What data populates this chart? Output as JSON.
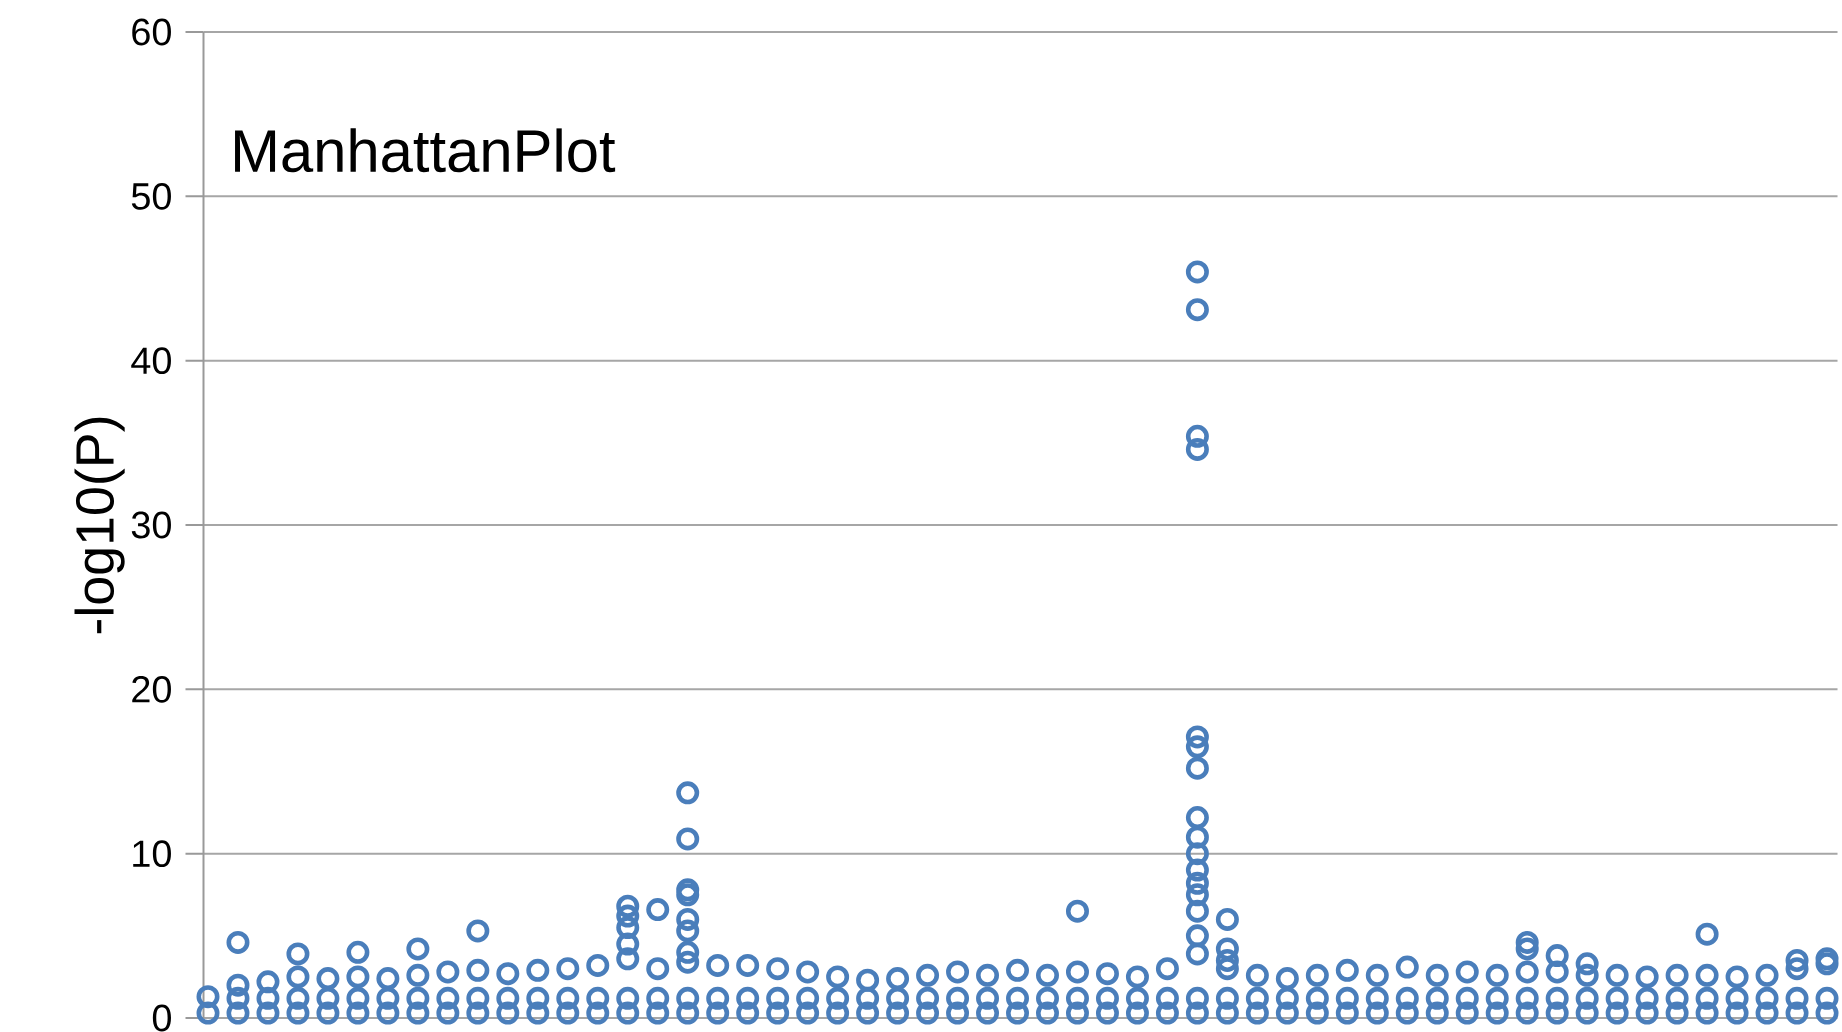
{
  "chart_data": {
    "type": "scatter",
    "title": "ManhattanPlot",
    "ylabel": "-log10(P)",
    "color": "#4a7ebb",
    "marker": "circle",
    "grid": "y",
    "tick_labels": "y",
    "ylim": [
      0,
      60
    ],
    "yticks": [
      0,
      10,
      20,
      30,
      40,
      50,
      60
    ],
    "categories": [
      null,
      null,
      null,
      null,
      null,
      null,
      null,
      null,
      null,
      null,
      null,
      null,
      null,
      null,
      null,
      null,
      null,
      null,
      null,
      null,
      null,
      null,
      null,
      null,
      null,
      null,
      null,
      null,
      null,
      null,
      null,
      null,
      null,
      null,
      null,
      null,
      null,
      null,
      null,
      null,
      null,
      null,
      null,
      null,
      null,
      null,
      null,
      null,
      null,
      null,
      null,
      null,
      null,
      null,
      null
    ],
    "series": [
      {
        "values": [
          1.3,
          2.0,
          2.2,
          2.5,
          2.4,
          2.5,
          2.4,
          2.6,
          2.8,
          2.9,
          2.7,
          2.9,
          3.0,
          3.2,
          3.6,
          3.0,
          3.4,
          3.2,
          3.2,
          3.0,
          2.8,
          2.5,
          2.3,
          2.4,
          2.6,
          2.8,
          2.6,
          2.9,
          2.6,
          2.8,
          2.7,
          2.5,
          3.0,
          3.9,
          3.0,
          2.6,
          2.4,
          2.6,
          2.9,
          2.6,
          3.1,
          2.6,
          2.8,
          2.6,
          2.8,
          2.8,
          2.6,
          2.6,
          2.5,
          2.6,
          2.6,
          2.5,
          2.6,
          3.0,
          3.3
        ]
      },
      {
        "values": [
          null,
          1.2,
          1.2,
          1.2,
          1.2,
          1.2,
          1.2,
          1.2,
          1.2,
          1.2,
          1.2,
          1.2,
          1.2,
          1.2,
          1.2,
          1.2,
          1.2,
          1.2,
          1.2,
          1.2,
          1.2,
          1.2,
          1.2,
          1.2,
          1.2,
          1.2,
          1.2,
          1.2,
          1.2,
          1.2,
          1.2,
          1.2,
          1.2,
          1.2,
          1.2,
          1.2,
          1.2,
          1.2,
          1.2,
          1.2,
          1.2,
          1.2,
          1.2,
          1.2,
          1.2,
          1.2,
          1.2,
          1.2,
          1.2,
          1.2,
          1.2,
          1.2,
          1.2,
          1.2,
          1.2
        ]
      },
      {
        "values": [
          0.3,
          0.3,
          0.3,
          0.3,
          0.3,
          0.3,
          0.3,
          0.3,
          0.3,
          0.3,
          0.3,
          0.3,
          0.3,
          0.3,
          0.3,
          0.3,
          0.3,
          0.3,
          0.3,
          0.3,
          0.3,
          0.3,
          0.3,
          0.3,
          0.3,
          0.3,
          0.3,
          0.3,
          0.3,
          0.3,
          0.3,
          0.3,
          0.3,
          0.3,
          0.3,
          0.3,
          0.3,
          0.3,
          0.3,
          0.3,
          0.3,
          0.3,
          0.3,
          0.3,
          0.3,
          0.3,
          0.3,
          0.3,
          0.3,
          0.3,
          0.3,
          0.3,
          0.3,
          0.3,
          0.3
        ]
      },
      {
        "values": [
          null,
          4.6,
          null,
          3.9,
          null,
          4.0,
          null,
          4.2,
          null,
          5.3,
          null,
          null,
          null,
          null,
          6.8,
          6.6,
          13.7,
          null,
          null,
          null,
          null,
          null,
          null,
          null,
          null,
          null,
          null,
          null,
          null,
          6.5,
          null,
          null,
          null,
          45.4,
          6.0,
          null,
          null,
          null,
          null,
          null,
          null,
          null,
          null,
          null,
          4.6,
          3.8,
          3.3,
          null,
          null,
          null,
          5.1,
          null,
          null,
          3.5,
          3.6
        ]
      },
      {
        "values": [
          null,
          null,
          null,
          null,
          null,
          null,
          null,
          null,
          null,
          null,
          null,
          null,
          null,
          null,
          6.2,
          null,
          10.9,
          null,
          null,
          null,
          null,
          null,
          null,
          null,
          null,
          null,
          null,
          null,
          null,
          null,
          null,
          null,
          null,
          43.1,
          4.2,
          null,
          null,
          null,
          null,
          null,
          null,
          null,
          null,
          null,
          4.2,
          null,
          null,
          null,
          null,
          null,
          null,
          null,
          null,
          null,
          null
        ]
      },
      {
        "values": [
          null,
          null,
          null,
          null,
          null,
          null,
          null,
          null,
          null,
          null,
          null,
          null,
          null,
          null,
          5.5,
          null,
          7.8,
          null,
          null,
          null,
          null,
          null,
          null,
          null,
          null,
          null,
          null,
          null,
          null,
          null,
          null,
          null,
          null,
          35.4,
          3.5,
          null,
          null,
          null,
          null,
          null,
          null,
          null,
          null,
          null,
          null,
          null,
          null,
          null,
          null,
          null,
          null,
          null,
          null,
          null,
          null
        ]
      },
      {
        "values": [
          null,
          null,
          null,
          null,
          null,
          null,
          null,
          null,
          null,
          null,
          null,
          null,
          null,
          null,
          4.5,
          null,
          7.5,
          null,
          null,
          null,
          null,
          null,
          null,
          null,
          null,
          null,
          null,
          null,
          null,
          null,
          null,
          null,
          null,
          34.6,
          null,
          null,
          null,
          null,
          null,
          null,
          null,
          null,
          null,
          null,
          null,
          null,
          null,
          null,
          null,
          null,
          null,
          null,
          null,
          null,
          null
        ]
      },
      {
        "values": [
          null,
          null,
          null,
          null,
          null,
          null,
          null,
          null,
          null,
          null,
          null,
          null,
          null,
          null,
          null,
          null,
          6.0,
          null,
          null,
          null,
          null,
          null,
          null,
          null,
          null,
          null,
          null,
          null,
          null,
          null,
          null,
          null,
          null,
          17.1,
          null,
          null,
          null,
          null,
          null,
          null,
          null,
          null,
          null,
          null,
          null,
          null,
          null,
          null,
          null,
          null,
          null,
          null,
          null,
          null,
          null
        ]
      },
      {
        "values": [
          null,
          null,
          null,
          null,
          null,
          null,
          null,
          null,
          null,
          null,
          null,
          null,
          null,
          null,
          null,
          null,
          5.3,
          null,
          null,
          null,
          null,
          null,
          null,
          null,
          null,
          null,
          null,
          null,
          null,
          null,
          null,
          null,
          null,
          16.5,
          null,
          null,
          null,
          null,
          null,
          null,
          null,
          null,
          null,
          null,
          null,
          null,
          null,
          null,
          null,
          null,
          null,
          null,
          null,
          null,
          null
        ]
      },
      {
        "values": [
          null,
          null,
          null,
          null,
          null,
          null,
          null,
          null,
          null,
          null,
          null,
          null,
          null,
          null,
          null,
          null,
          null,
          null,
          null,
          null,
          null,
          null,
          null,
          null,
          null,
          null,
          null,
          null,
          null,
          null,
          null,
          null,
          null,
          15.2,
          null,
          null,
          null,
          null,
          null,
          null,
          null,
          null,
          null,
          null,
          null,
          null,
          null,
          null,
          null,
          null,
          null,
          null,
          null,
          null,
          null
        ]
      },
      {
        "values": [
          null,
          null,
          null,
          null,
          null,
          null,
          null,
          null,
          null,
          null,
          null,
          null,
          null,
          null,
          null,
          null,
          4.0,
          null,
          null,
          null,
          null,
          null,
          null,
          null,
          null,
          null,
          null,
          null,
          null,
          null,
          null,
          null,
          null,
          12.2,
          null,
          null,
          null,
          null,
          null,
          null,
          null,
          null,
          null,
          null,
          null,
          null,
          null,
          null,
          null,
          null,
          null,
          null,
          null,
          null,
          null
        ]
      },
      {
        "values": [
          null,
          null,
          null,
          null,
          null,
          null,
          null,
          null,
          null,
          null,
          null,
          null,
          null,
          null,
          null,
          null,
          null,
          null,
          null,
          null,
          null,
          null,
          null,
          null,
          null,
          null,
          null,
          null,
          null,
          null,
          null,
          null,
          null,
          11.0,
          null,
          null,
          null,
          null,
          null,
          null,
          null,
          null,
          null,
          null,
          null,
          null,
          null,
          null,
          null,
          null,
          null,
          null,
          null,
          null,
          null
        ]
      },
      {
        "values": [
          null,
          null,
          null,
          null,
          null,
          null,
          null,
          null,
          null,
          null,
          null,
          null,
          null,
          null,
          null,
          null,
          null,
          null,
          null,
          null,
          null,
          null,
          null,
          null,
          null,
          null,
          null,
          null,
          null,
          null,
          null,
          null,
          null,
          10.0,
          null,
          null,
          null,
          null,
          null,
          null,
          null,
          null,
          null,
          null,
          null,
          null,
          null,
          null,
          null,
          null,
          null,
          null,
          null,
          null,
          null
        ]
      },
      {
        "values": [
          null,
          null,
          null,
          null,
          null,
          null,
          null,
          null,
          null,
          null,
          null,
          null,
          null,
          null,
          null,
          null,
          null,
          null,
          null,
          null,
          null,
          null,
          null,
          null,
          null,
          null,
          null,
          null,
          null,
          null,
          null,
          null,
          null,
          9.0,
          null,
          null,
          null,
          null,
          null,
          null,
          null,
          null,
          null,
          null,
          null,
          null,
          null,
          null,
          null,
          null,
          null,
          null,
          null,
          null,
          null
        ]
      },
      {
        "values": [
          null,
          null,
          null,
          null,
          null,
          null,
          null,
          null,
          null,
          null,
          null,
          null,
          null,
          null,
          null,
          null,
          null,
          null,
          null,
          null,
          null,
          null,
          null,
          null,
          null,
          null,
          null,
          null,
          null,
          null,
          null,
          null,
          null,
          8.2,
          null,
          null,
          null,
          null,
          null,
          null,
          null,
          null,
          null,
          null,
          null,
          null,
          null,
          null,
          null,
          null,
          null,
          null,
          null,
          null,
          null
        ]
      },
      {
        "values": [
          null,
          null,
          null,
          null,
          null,
          null,
          null,
          null,
          null,
          null,
          null,
          null,
          null,
          null,
          null,
          null,
          null,
          null,
          null,
          null,
          null,
          null,
          null,
          null,
          null,
          null,
          null,
          null,
          null,
          null,
          null,
          null,
          null,
          7.5,
          null,
          null,
          null,
          null,
          null,
          null,
          null,
          null,
          null,
          null,
          null,
          null,
          null,
          null,
          null,
          null,
          null,
          null,
          null,
          null,
          null
        ]
      },
      {
        "values": [
          null,
          null,
          null,
          null,
          null,
          null,
          null,
          null,
          null,
          null,
          null,
          null,
          null,
          null,
          null,
          null,
          null,
          null,
          null,
          null,
          null,
          null,
          null,
          null,
          null,
          null,
          null,
          null,
          null,
          null,
          null,
          null,
          null,
          6.5,
          null,
          null,
          null,
          null,
          null,
          null,
          null,
          null,
          null,
          null,
          null,
          null,
          null,
          null,
          null,
          null,
          null,
          null,
          null,
          null,
          null
        ]
      },
      {
        "values": [
          null,
          null,
          null,
          null,
          null,
          null,
          null,
          null,
          null,
          null,
          null,
          null,
          null,
          null,
          null,
          null,
          null,
          null,
          null,
          null,
          null,
          null,
          null,
          null,
          null,
          null,
          null,
          null,
          null,
          null,
          null,
          null,
          null,
          5.0,
          null,
          null,
          null,
          null,
          null,
          null,
          null,
          null,
          null,
          null,
          null,
          null,
          null,
          null,
          null,
          null,
          null,
          null,
          null,
          null,
          null
        ]
      }
    ]
  }
}
